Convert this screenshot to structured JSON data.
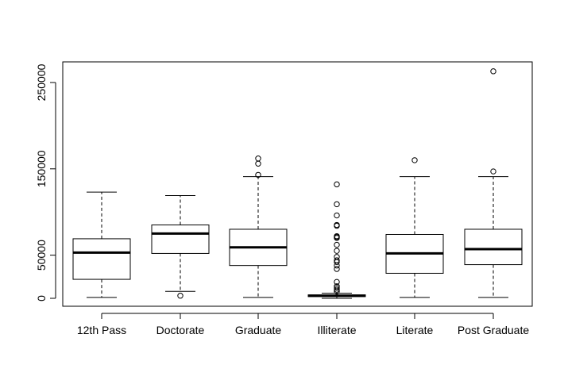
{
  "chart_data": {
    "type": "boxplot",
    "title": "",
    "xlabel": "",
    "ylabel": "",
    "ylim": [
      -10000,
      272000
    ],
    "y_ticks": [
      0,
      50000,
      150000,
      250000
    ],
    "y_tick_labels": [
      "0",
      "50000",
      "150000",
      "250000"
    ],
    "grid": false,
    "categories": [
      "12th Pass",
      "Doctorate",
      "Graduate",
      "Illiterate",
      "Literate",
      "Post Graduate"
    ],
    "boxes": [
      {
        "q1": 22000,
        "median": 53000,
        "q3": 69000,
        "whisker_low": 1000,
        "whisker_high": 123000,
        "outliers": []
      },
      {
        "q1": 52000,
        "median": 75000,
        "q3": 85000,
        "whisker_low": 8000,
        "whisker_high": 119000,
        "outliers": [
          3000
        ]
      },
      {
        "q1": 38000,
        "median": 59000,
        "q3": 80000,
        "whisker_low": 1000,
        "whisker_high": 141000,
        "outliers": [
          143000,
          156000,
          162000
        ]
      },
      {
        "q1": 2000,
        "median": 3000,
        "q3": 4000,
        "whisker_low": 0,
        "whisker_high": 6000,
        "outliers": [
          8000,
          10000,
          12000,
          14000,
          19000,
          34000,
          38000,
          42000,
          44000,
          48000,
          55000,
          62000,
          70000,
          71000,
          72000,
          84000,
          85000,
          96000,
          109000,
          132000
        ]
      },
      {
        "q1": 29000,
        "median": 52000,
        "q3": 74000,
        "whisker_low": 1000,
        "whisker_high": 141000,
        "outliers": [
          160000
        ]
      },
      {
        "q1": 39000,
        "median": 57000,
        "q3": 80000,
        "whisker_low": 1000,
        "whisker_high": 141000,
        "outliers": [
          147000,
          263000
        ]
      }
    ]
  }
}
